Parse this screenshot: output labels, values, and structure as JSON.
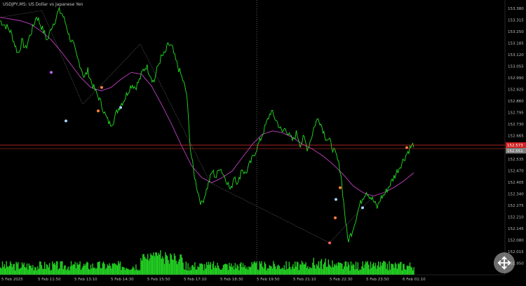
{
  "window": {
    "title": "USDJPY,M5: US Dollar vs Japanese Yen"
  },
  "colors": {
    "background": "#000000",
    "price_line": "#22dd22",
    "ma_line": "#c040c0",
    "zigzag_line": "#8a8a8a",
    "volume": "#22cc22",
    "ask_line": "#e03030",
    "bid_badge": "#d02020",
    "ask_badge": "#7d7d7d",
    "crosshair": "#808080",
    "axis_text": "#bdbdbd"
  },
  "price_axis": {
    "labels": [
      "153.380",
      "153.315",
      "153.250",
      "153.185",
      "153.120",
      "153.055",
      "152.990",
      "152.925",
      "152.860",
      "152.795",
      "152.730",
      "152.665",
      "152.600",
      "152.535",
      "152.470",
      "152.405",
      "152.340",
      "152.275",
      "152.210",
      "152.145",
      "152.080",
      "152.015",
      "151.950"
    ],
    "bid_badge": "152.573",
    "ask_badge": "152.551"
  },
  "time_axis": {
    "labels": [
      "5 Feb 2025",
      "5 Feb 11:50",
      "5 Feb 13:10",
      "5 Feb 14:30",
      "5 Feb 15:50",
      "5 Feb 17:10",
      "5 Feb 18:30",
      "5 Feb 19:50",
      "5 Feb 21:10",
      "5 Feb 22:30",
      "5 Feb 23:50",
      "6 Feb 01:10"
    ]
  },
  "chart_data": {
    "type": "line",
    "symbol": "USDJPY",
    "timeframe": "M5",
    "ylim": [
      151.95,
      153.41
    ],
    "series": [
      {
        "values": [
          153.32,
          153.3,
          153.28,
          153.25,
          153.18,
          153.12,
          153.2,
          153.15,
          153.22,
          153.28,
          153.35,
          153.3,
          153.25,
          153.2,
          153.28,
          153.32,
          153.38,
          153.36,
          153.3,
          153.22,
          153.18,
          153.1,
          153.05,
          152.98,
          153.02,
          152.95,
          152.9,
          152.86,
          152.8,
          152.74,
          152.7,
          152.72,
          152.78,
          152.82,
          152.85,
          152.9,
          152.94,
          152.92,
          152.96,
          153.02,
          153.05,
          153.0,
          152.95,
          153.04,
          153.1,
          153.12,
          153.18,
          153.16,
          153.08,
          153.02,
          152.96,
          152.88,
          152.55,
          152.4,
          152.3,
          152.22,
          152.28,
          152.35,
          152.42,
          152.38,
          152.45,
          152.4,
          152.36,
          152.3,
          152.4,
          152.34,
          152.44,
          152.4,
          152.45,
          152.5,
          152.55,
          152.6,
          152.66,
          152.72,
          152.78,
          152.74,
          152.7,
          152.65,
          152.68,
          152.63,
          152.6,
          152.65,
          152.58,
          152.62,
          152.55,
          152.62,
          152.7,
          152.74,
          152.68,
          152.62,
          152.6,
          152.55,
          152.5,
          152.42,
          152.2,
          152.0,
          152.05,
          152.12,
          152.2,
          152.26,
          152.3,
          152.27,
          152.24,
          152.2,
          152.26,
          152.28,
          152.32,
          152.36,
          152.4,
          152.44,
          152.48,
          152.52,
          152.56,
          152.58
        ]
      },
      {
        "values": [
          153.34,
          153.33,
          153.32,
          153.3,
          153.26,
          153.21,
          153.14,
          153.06,
          152.98,
          152.92,
          152.9,
          152.92,
          152.97,
          153.01,
          153.0,
          152.93,
          152.82,
          152.7,
          152.57,
          152.45,
          152.38,
          152.35,
          152.38,
          152.42,
          152.5,
          152.58,
          152.64,
          152.66,
          152.65,
          152.62,
          152.58,
          152.55,
          152.51,
          152.46,
          152.4,
          152.33,
          152.29,
          152.27,
          152.29,
          152.32,
          152.36,
          152.41
        ]
      }
    ],
    "annotations": []
  }
}
